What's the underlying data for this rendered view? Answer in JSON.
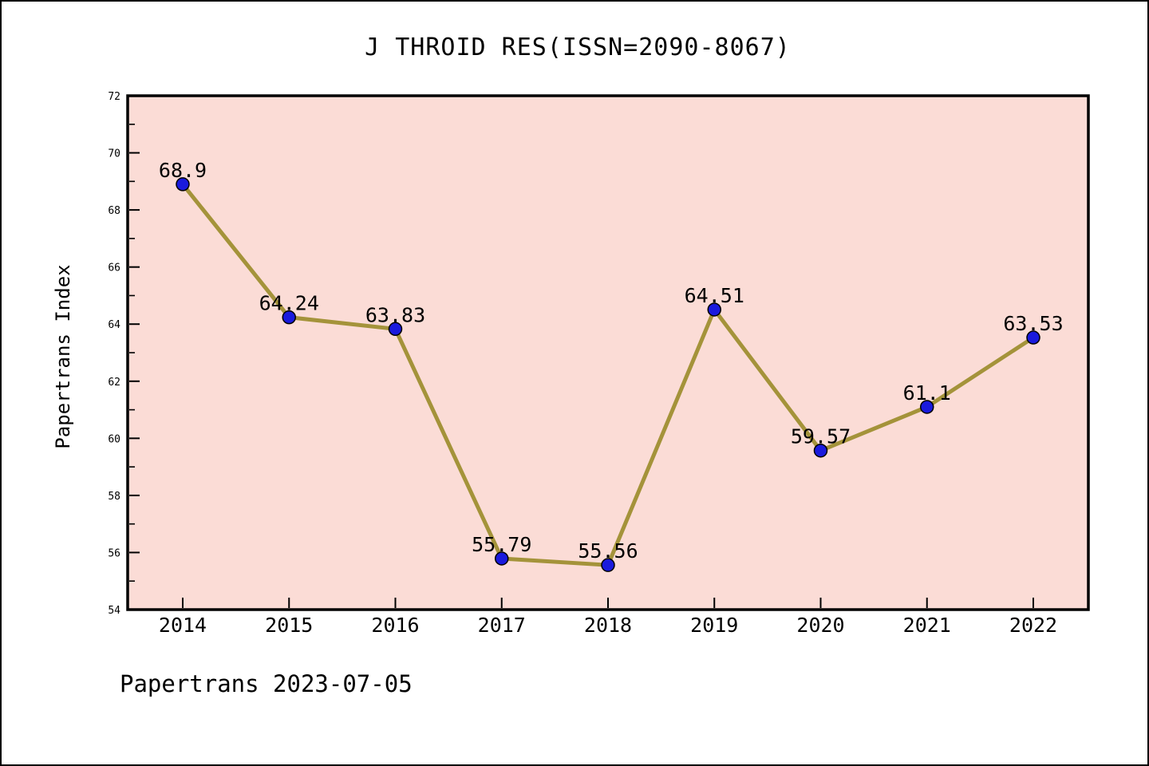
{
  "title": "J THROID RES(ISSN=2090-8067)",
  "footer": "Papertrans 2023-07-05",
  "chart_data": {
    "type": "line",
    "title": "J THROID RES(ISSN=2090-8067)",
    "xlabel": "",
    "ylabel": "Papertrans Index",
    "x": [
      2014,
      2015,
      2016,
      2017,
      2018,
      2019,
      2020,
      2021,
      2022
    ],
    "series": [
      {
        "name": "Papertrans Index",
        "values": [
          68.9,
          64.24,
          63.83,
          55.79,
          55.56,
          64.51,
          59.57,
          61.1,
          63.53
        ]
      }
    ],
    "point_labels": [
      "68.9",
      "64.24",
      "63.83",
      "55.79",
      "55.56",
      "64.51",
      "59.57",
      "61.1",
      "63.53"
    ],
    "ylim": [
      54,
      72
    ],
    "y_major_ticks": [
      54,
      56,
      58,
      60,
      62,
      64,
      66,
      68,
      70,
      72
    ],
    "y_minor_ticks": [
      55,
      57,
      59,
      61,
      63,
      65,
      67,
      69,
      71
    ],
    "grid": false,
    "legend_position": "none",
    "colors": {
      "plot_background": "#fbdcd6",
      "figure_background": "#ffffff",
      "line": "#a4933a",
      "marker_fill": "#1a1add",
      "marker_edge": "#000000",
      "axis": "#000000"
    }
  }
}
